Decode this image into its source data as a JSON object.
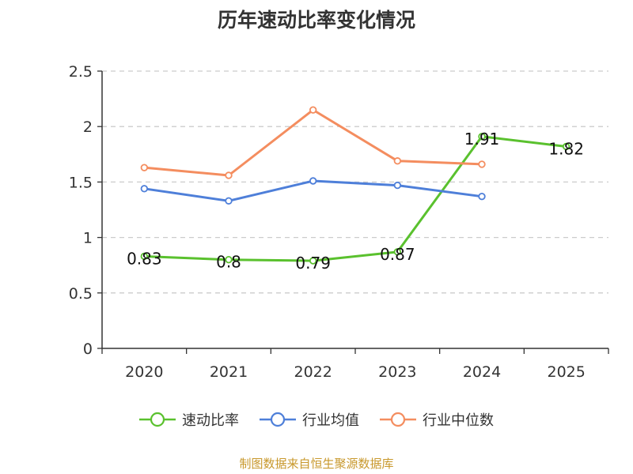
{
  "title": "历年速动比率变化情况",
  "source": "制图数据来自恒生聚源数据库",
  "chart_data": {
    "type": "line",
    "title": "历年速动比率变化情况",
    "categories": [
      "2020",
      "2021",
      "2022",
      "2023",
      "2024",
      "2025"
    ],
    "ylim": [
      0,
      2.5
    ],
    "yticks": [
      "0",
      "0.5",
      "1",
      "1.5",
      "2",
      "2.5"
    ],
    "grid": true,
    "legend_position": "bottom",
    "series": [
      {
        "name": "速动比率",
        "color": "#5ac12e",
        "values": [
          0.83,
          0.8,
          0.79,
          0.87,
          1.91,
          1.82
        ],
        "labels": [
          "0.83",
          "0.8",
          "0.79",
          "0.87",
          "1.91",
          "1.82"
        ]
      },
      {
        "name": "行业均值",
        "color": "#4e7fd9",
        "values": [
          1.44,
          1.33,
          1.51,
          1.47,
          1.37,
          null
        ]
      },
      {
        "name": "行业中位数",
        "color": "#f48d5f",
        "values": [
          1.63,
          1.56,
          2.15,
          1.69,
          1.66,
          null
        ]
      }
    ]
  }
}
